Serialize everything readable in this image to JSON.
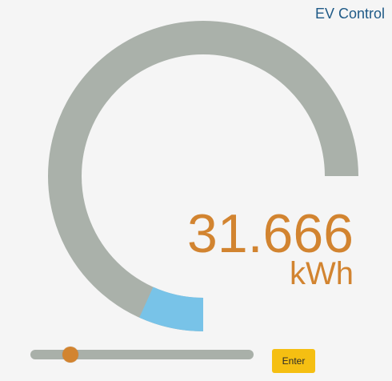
{
  "header": {
    "title": "EV Control"
  },
  "gauge": {
    "value_text": "31.666",
    "unit": "kWh",
    "level_fraction": 0.09,
    "track_color": "#aab1aa",
    "fill_color": "#78c3e8"
  },
  "slider": {
    "value_fraction": 0.18,
    "track_color": "#a9b0a9",
    "thumb_color": "#d28430"
  },
  "controls": {
    "enter_label": "Enter"
  }
}
